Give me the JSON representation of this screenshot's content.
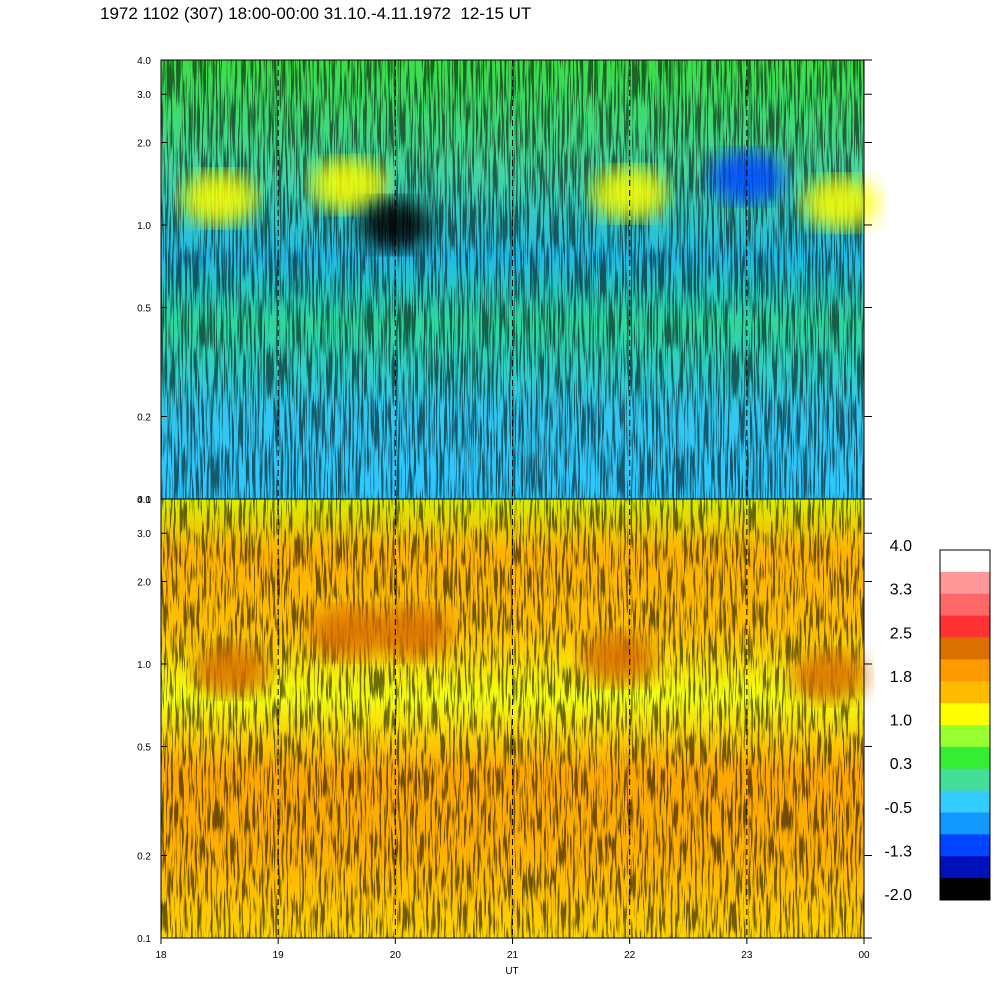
{
  "title": "1972 1102 (307) 18:00-00:00 31.10.-4.11.1972  12-15 UT",
  "chart_data": [
    {
      "type": "heatmap",
      "panel": "upper",
      "x_range": [
        18,
        24
      ],
      "x_tick_labels": [
        "18",
        "19",
        "20",
        "21",
        "22",
        "23",
        "00"
      ],
      "y_scale": "log",
      "ylim": [
        0.1,
        4.0
      ],
      "y_tick_values": [
        0.1,
        0.2,
        0.5,
        1.0,
        2.0,
        3.0,
        4.0
      ],
      "y_tick_labels": [
        "0.1",
        "0.2",
        "0.5",
        "1.0",
        "2.0",
        "3.0",
        "4.0"
      ],
      "dashed_verticals": [
        19,
        20,
        21,
        22,
        23
      ],
      "dominant_level": "-0.5 to 0.3",
      "features": [
        {
          "x": 18.5,
          "y": 1.25,
          "level": "1.0"
        },
        {
          "x": 19.6,
          "y": 1.4,
          "level": "1.0"
        },
        {
          "x": 20.0,
          "y": 1.0,
          "level": "-2.0"
        },
        {
          "x": 22.0,
          "y": 1.3,
          "level": "1.0"
        },
        {
          "x": 23.0,
          "y": 1.5,
          "level": "-1.3"
        },
        {
          "x": 23.8,
          "y": 1.2,
          "level": "1.0"
        }
      ]
    },
    {
      "type": "heatmap",
      "panel": "lower",
      "x_range": [
        18,
        24
      ],
      "x_tick_labels": [
        "18",
        "19",
        "20",
        "21",
        "22",
        "23",
        "00"
      ],
      "xlabel": "UT",
      "y_scale": "log",
      "ylim": [
        0.1,
        4.0
      ],
      "y_tick_values": [
        0.1,
        0.2,
        0.5,
        1.0,
        2.0,
        3.0,
        4.0
      ],
      "y_tick_labels": [
        "0.1",
        "0.2",
        "0.5",
        "1.0",
        "2.0",
        "3.0",
        "4.0"
      ],
      "dashed_verticals": [
        19,
        20,
        21,
        22,
        23
      ],
      "dominant_level": "1.0 to 1.8",
      "features": [
        {
          "x": 18.6,
          "y": 0.95,
          "level": "2.5"
        },
        {
          "x": 19.6,
          "y": 1.3,
          "level": "2.5"
        },
        {
          "x": 20.15,
          "y": 1.3,
          "level": "2.5"
        },
        {
          "x": 21.9,
          "y": 1.05,
          "level": "2.5"
        },
        {
          "x": 23.7,
          "y": 0.9,
          "level": "2.5"
        }
      ]
    }
  ],
  "colorbar": {
    "labels": [
      "4.0",
      "3.3",
      "2.5",
      "1.8",
      "1.0",
      "0.3",
      "-0.5",
      "-1.3",
      "-2.0"
    ],
    "colors": [
      "#ffffff",
      "#ff9999",
      "#ff6666",
      "#ff3333",
      "#d97000",
      "#ff9900",
      "#ffbb00",
      "#ffff00",
      "#99ff33",
      "#33ee33",
      "#44dd99",
      "#33ccff",
      "#1199ff",
      "#0044ff",
      "#0011bb",
      "#000000"
    ]
  }
}
